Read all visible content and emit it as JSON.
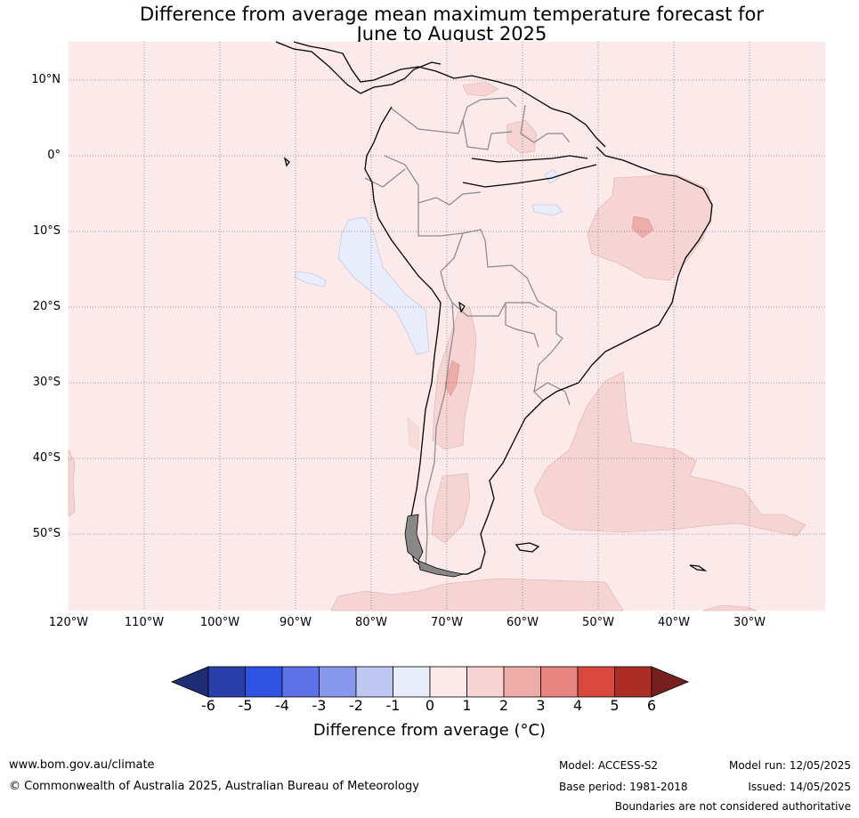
{
  "title": {
    "line1": "Difference from average mean maximum temperature forecast for",
    "line2": "June to August 2025"
  },
  "map": {
    "lat_labels": [
      "10°N",
      "0°",
      "10°S",
      "20°S",
      "30°S",
      "40°S",
      "50°S"
    ],
    "lon_labels": [
      "120°W",
      "110°W",
      "100°W",
      "90°W",
      "80°W",
      "70°W",
      "60°W",
      "50°W",
      "40°W",
      "30°W"
    ],
    "background_color": "#fbeae9"
  },
  "colorbar": {
    "ticks": [
      "-6",
      "-5",
      "-4",
      "-3",
      "-2",
      "-1",
      "0",
      "1",
      "2",
      "3",
      "4",
      "5",
      "6"
    ],
    "colors": [
      "#283ea8",
      "#2f52e0",
      "#5c72e6",
      "#8798ec",
      "#bfc7f3",
      "#e8ecfb",
      "#fbeae9",
      "#f5d4d3",
      "#eeaca9",
      "#e8847f",
      "#d9483e",
      "#ab2d23"
    ],
    "low_extend_color": "#1f2d75",
    "high_extend_color": "#751f1f",
    "label": "Difference from average (°C)"
  },
  "footer": {
    "website": "www.bom.gov.au/climate",
    "copyright": "© Commonwealth of Australia 2025, Australian Bureau of Meteorology",
    "model": "Model: ACCESS-S2",
    "base_period": "Base period: 1981-2018",
    "model_run": "Model run: 12/05/2025",
    "issued": "Issued: 14/05/2025",
    "disclaimer": "Boundaries are not considered authoritative"
  }
}
